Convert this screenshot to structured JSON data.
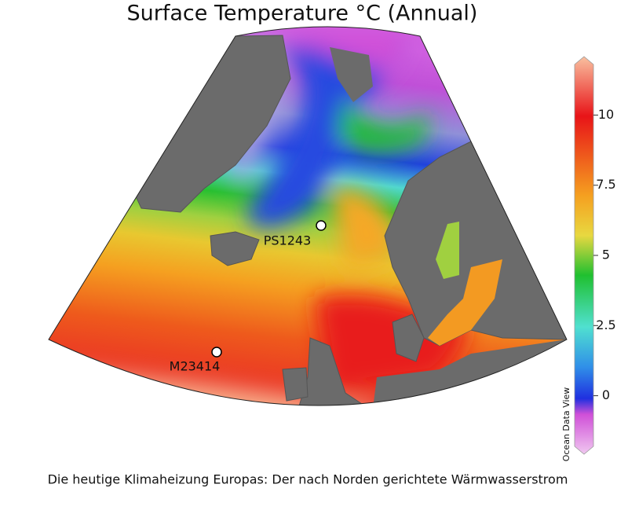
{
  "title": "Surface Temperature °C (Annual)",
  "colorbar": {
    "lim": [
      -2,
      12
    ],
    "ticks": [
      0,
      2.5,
      5,
      7.5,
      10
    ],
    "label": "Ocean Data View"
  },
  "stations": [
    {
      "label": "PS1243"
    },
    {
      "label": "M23414"
    }
  ],
  "caption": "Die heutige Klimaheizung Europas: Der nach Norden gerichtete Wärmwasserstrom"
}
